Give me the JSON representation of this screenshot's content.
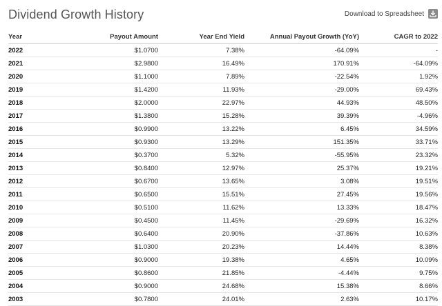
{
  "title": "Dividend Growth History",
  "download": {
    "label": "Download to Spreadsheet",
    "icon": "download-icon"
  },
  "table": {
    "columns": [
      "Year",
      "Payout Amount",
      "Year End Yield",
      "Annual Payout Growth (YoY)",
      "CAGR to 2022"
    ],
    "rows": [
      [
        "2022",
        "$1.0700",
        "7.38%",
        "-64.09%",
        "-"
      ],
      [
        "2021",
        "$2.9800",
        "16.49%",
        "170.91%",
        "-64.09%"
      ],
      [
        "2020",
        "$1.1000",
        "7.89%",
        "-22.54%",
        "1.92%"
      ],
      [
        "2019",
        "$1.4200",
        "11.93%",
        "-29.00%",
        "69.43%"
      ],
      [
        "2018",
        "$2.0000",
        "22.97%",
        "44.93%",
        "48.50%"
      ],
      [
        "2017",
        "$1.3800",
        "15.28%",
        "39.39%",
        "-4.96%"
      ],
      [
        "2016",
        "$0.9900",
        "13.22%",
        "6.45%",
        "34.59%"
      ],
      [
        "2015",
        "$0.9300",
        "13.29%",
        "151.35%",
        "33.71%"
      ],
      [
        "2014",
        "$0.3700",
        "5.32%",
        "-55.95%",
        "23.32%"
      ],
      [
        "2013",
        "$0.8400",
        "12.97%",
        "25.37%",
        "19.21%"
      ],
      [
        "2012",
        "$0.6700",
        "13.65%",
        "3.08%",
        "19.51%"
      ],
      [
        "2011",
        "$0.6500",
        "15.51%",
        "27.45%",
        "19.56%"
      ],
      [
        "2010",
        "$0.5100",
        "11.62%",
        "13.33%",
        "18.47%"
      ],
      [
        "2009",
        "$0.4500",
        "11.45%",
        "-29.69%",
        "16.32%"
      ],
      [
        "2008",
        "$0.6400",
        "20.90%",
        "-37.86%",
        "10.63%"
      ],
      [
        "2007",
        "$1.0300",
        "20.23%",
        "14.44%",
        "8.38%"
      ],
      [
        "2006",
        "$0.9000",
        "19.38%",
        "4.65%",
        "10.09%"
      ],
      [
        "2005",
        "$0.8600",
        "21.85%",
        "-4.44%",
        "9.75%"
      ],
      [
        "2004",
        "$0.9000",
        "24.68%",
        "15.38%",
        "8.66%"
      ],
      [
        "2003",
        "$0.7800",
        "24.01%",
        "2.63%",
        "10.17%"
      ]
    ]
  }
}
